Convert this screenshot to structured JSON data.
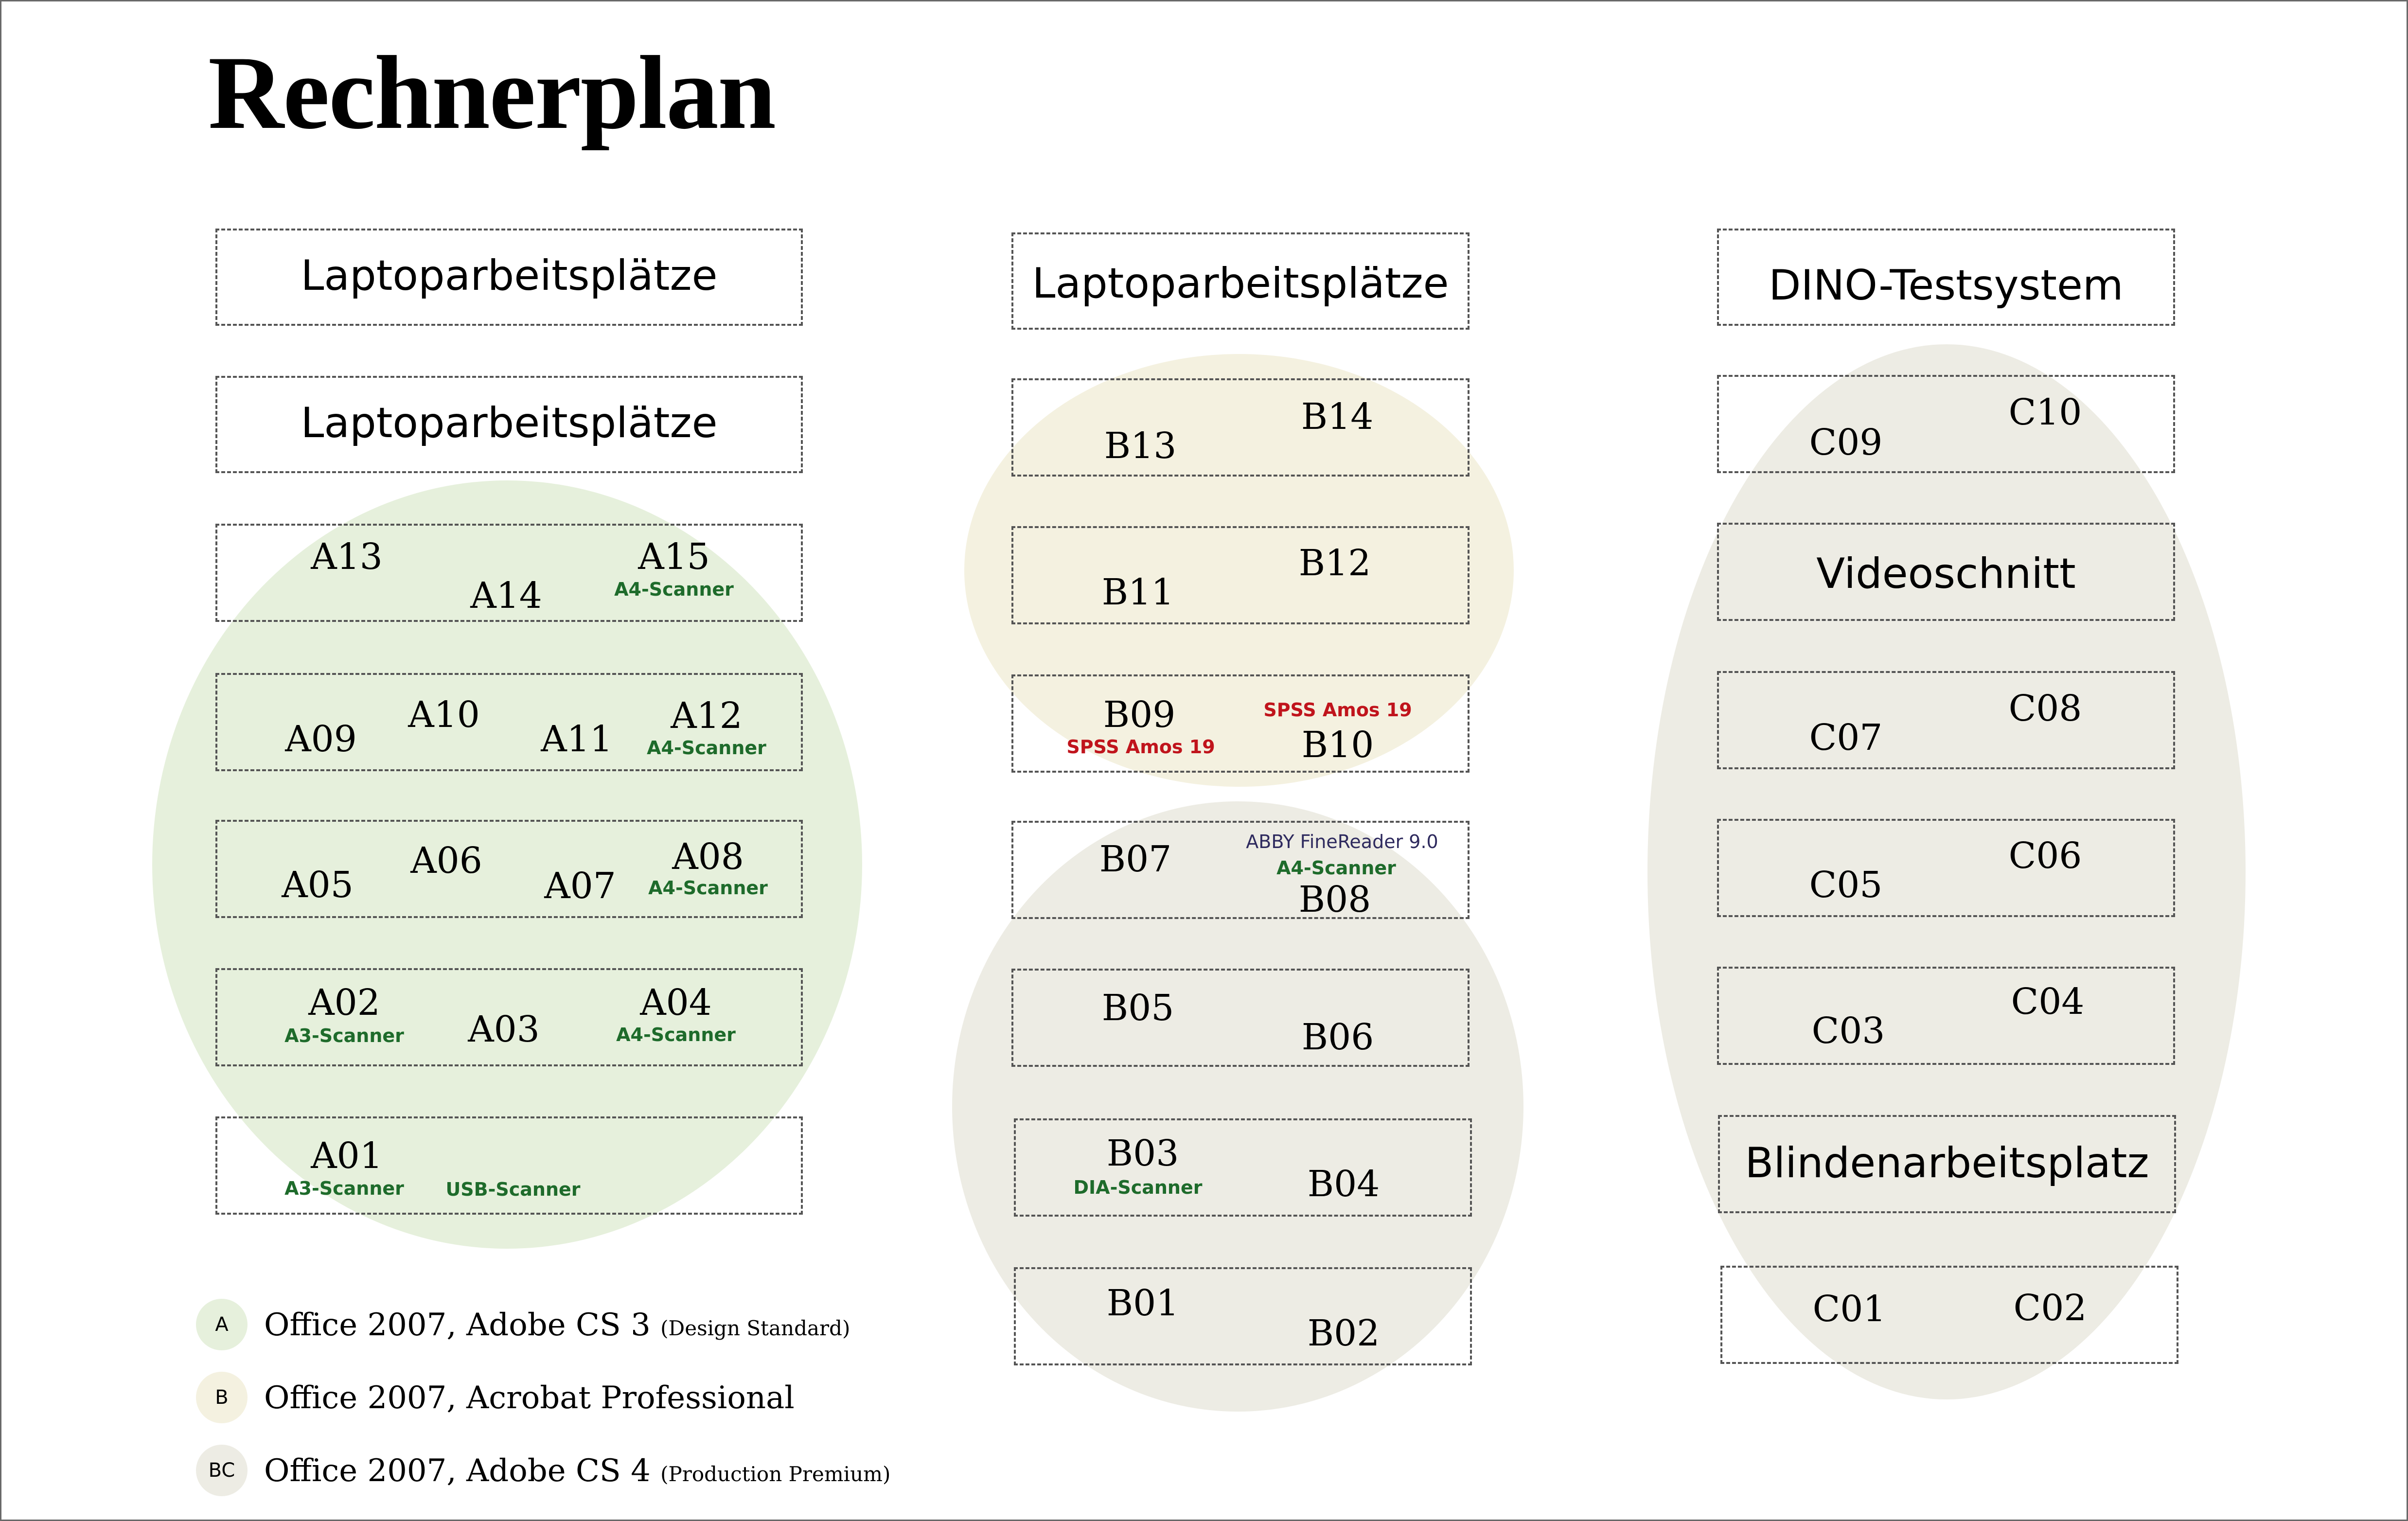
{
  "title": "Rechnerplan",
  "zones": {
    "a": {
      "laptop1": "Laptoparbeitsplätze",
      "laptop2": "Laptoparbeitsplätze",
      "a13": "A13",
      "a14": "A14",
      "a15": "A15",
      "a15_note": "A4-Scanner",
      "a09": "A09",
      "a10": "A10",
      "a11": "A11",
      "a12": "A12",
      "a12_note": "A4-Scanner",
      "a05": "A05",
      "a06": "A06",
      "a07": "A07",
      "a08": "A08",
      "a08_note": "A4-Scanner",
      "a02": "A02",
      "a02_note": "A3-Scanner",
      "a03": "A03",
      "a04": "A04",
      "a04_note": "A4-Scanner",
      "a01": "A01",
      "a01_note": "A3-Scanner",
      "a01_note2": "USB-Scanner"
    },
    "b": {
      "laptop": "Laptoparbeitsplätze",
      "b13": "B13",
      "b14": "B14",
      "b11": "B11",
      "b12": "B12",
      "b09": "B09",
      "b09_note": "SPSS Amos 19",
      "b10": "B10",
      "b10_note": "SPSS Amos 19",
      "b07": "B07",
      "b08": "B08",
      "b08_note1": "ABBY FineReader 9.0",
      "b08_note2": "A4-Scanner",
      "b05": "B05",
      "b06": "B06",
      "b03": "B03",
      "b03_note": "DIA-Scanner",
      "b04": "B04",
      "b01": "B01",
      "b02": "B02"
    },
    "c": {
      "dino": "DINO-Testsystem",
      "c09": "C09",
      "c10": "C10",
      "video": "Videoschnitt",
      "c07": "C07",
      "c08": "C08",
      "c05": "C05",
      "c06": "C06",
      "c03": "C03",
      "c04": "C04",
      "blind": "Blindenarbeitsplatz",
      "c01": "C01",
      "c02": "C02"
    }
  },
  "legend": [
    {
      "key": "A",
      "text": "Office 2007, Adobe CS 3",
      "small": "(Design Standard)",
      "color": "#e6f0dc"
    },
    {
      "key": "B",
      "text": "Office 2007, Acrobat Professional",
      "small": "",
      "color": "#f4f1e0"
    },
    {
      "key": "BC",
      "text": "Office 2007, Adobe CS 4",
      "small": "(Production Premium)",
      "color": "#edece4"
    }
  ],
  "colors": {
    "zone_a": "#e6f0dc",
    "zone_b_upper": "#f4f1e0",
    "zone_b_lower": "#edece4",
    "zone_c": "#edece4",
    "scanner_note": "#1e6b2b",
    "software_note": "#c0141c",
    "finereader_note": "#2e2a5e"
  }
}
